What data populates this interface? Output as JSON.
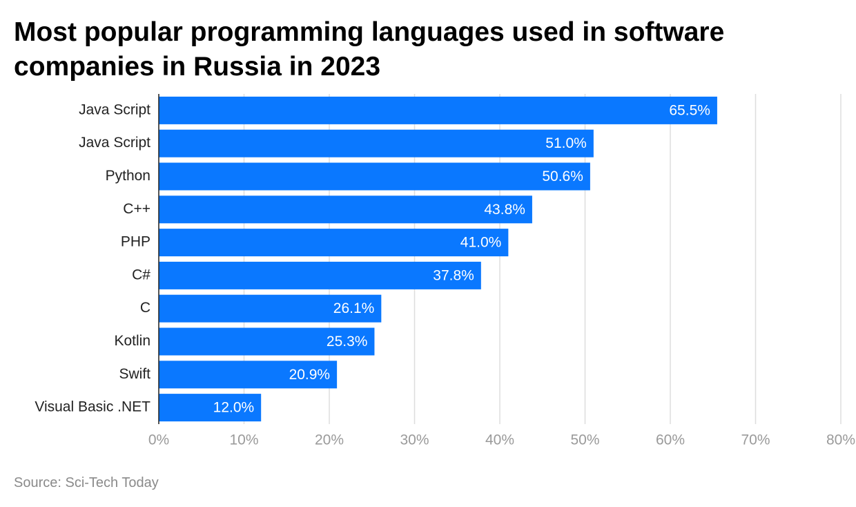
{
  "chart_data": {
    "type": "bar",
    "orientation": "horizontal",
    "title": "Most popular programming languages used in software companies in Russia in 2023",
    "source": "Source: Sci-Tech Today",
    "categories": [
      "Java Script",
      "Java Script",
      "Python",
      "C++",
      "PHP",
      "C#",
      "C",
      "Kotlin",
      "Swift",
      "Visual Basic .NET"
    ],
    "values": [
      65.5,
      51.0,
      50.6,
      43.8,
      41.0,
      37.8,
      26.1,
      25.3,
      20.9,
      12.0
    ],
    "value_labels": [
      "65.5%",
      "51.0%",
      "50.6%",
      "43.8%",
      "41.0%",
      "37.8%",
      "26.1%",
      "25.3%",
      "20.9%",
      "12.0%"
    ],
    "color": "#0a78ff",
    "xlim": [
      0,
      80
    ],
    "xticks": [
      {
        "value": 0,
        "label": "0%"
      },
      {
        "value": 10,
        "label": "10%"
      },
      {
        "value": 20,
        "label": "20%"
      },
      {
        "value": 30,
        "label": "30%"
      },
      {
        "value": 40,
        "label": "40%"
      },
      {
        "value": 50,
        "label": "50%"
      },
      {
        "value": 60,
        "label": "60%"
      },
      {
        "value": 70,
        "label": "70%"
      },
      {
        "value": 80,
        "label": "80%"
      }
    ],
    "grid": true
  }
}
